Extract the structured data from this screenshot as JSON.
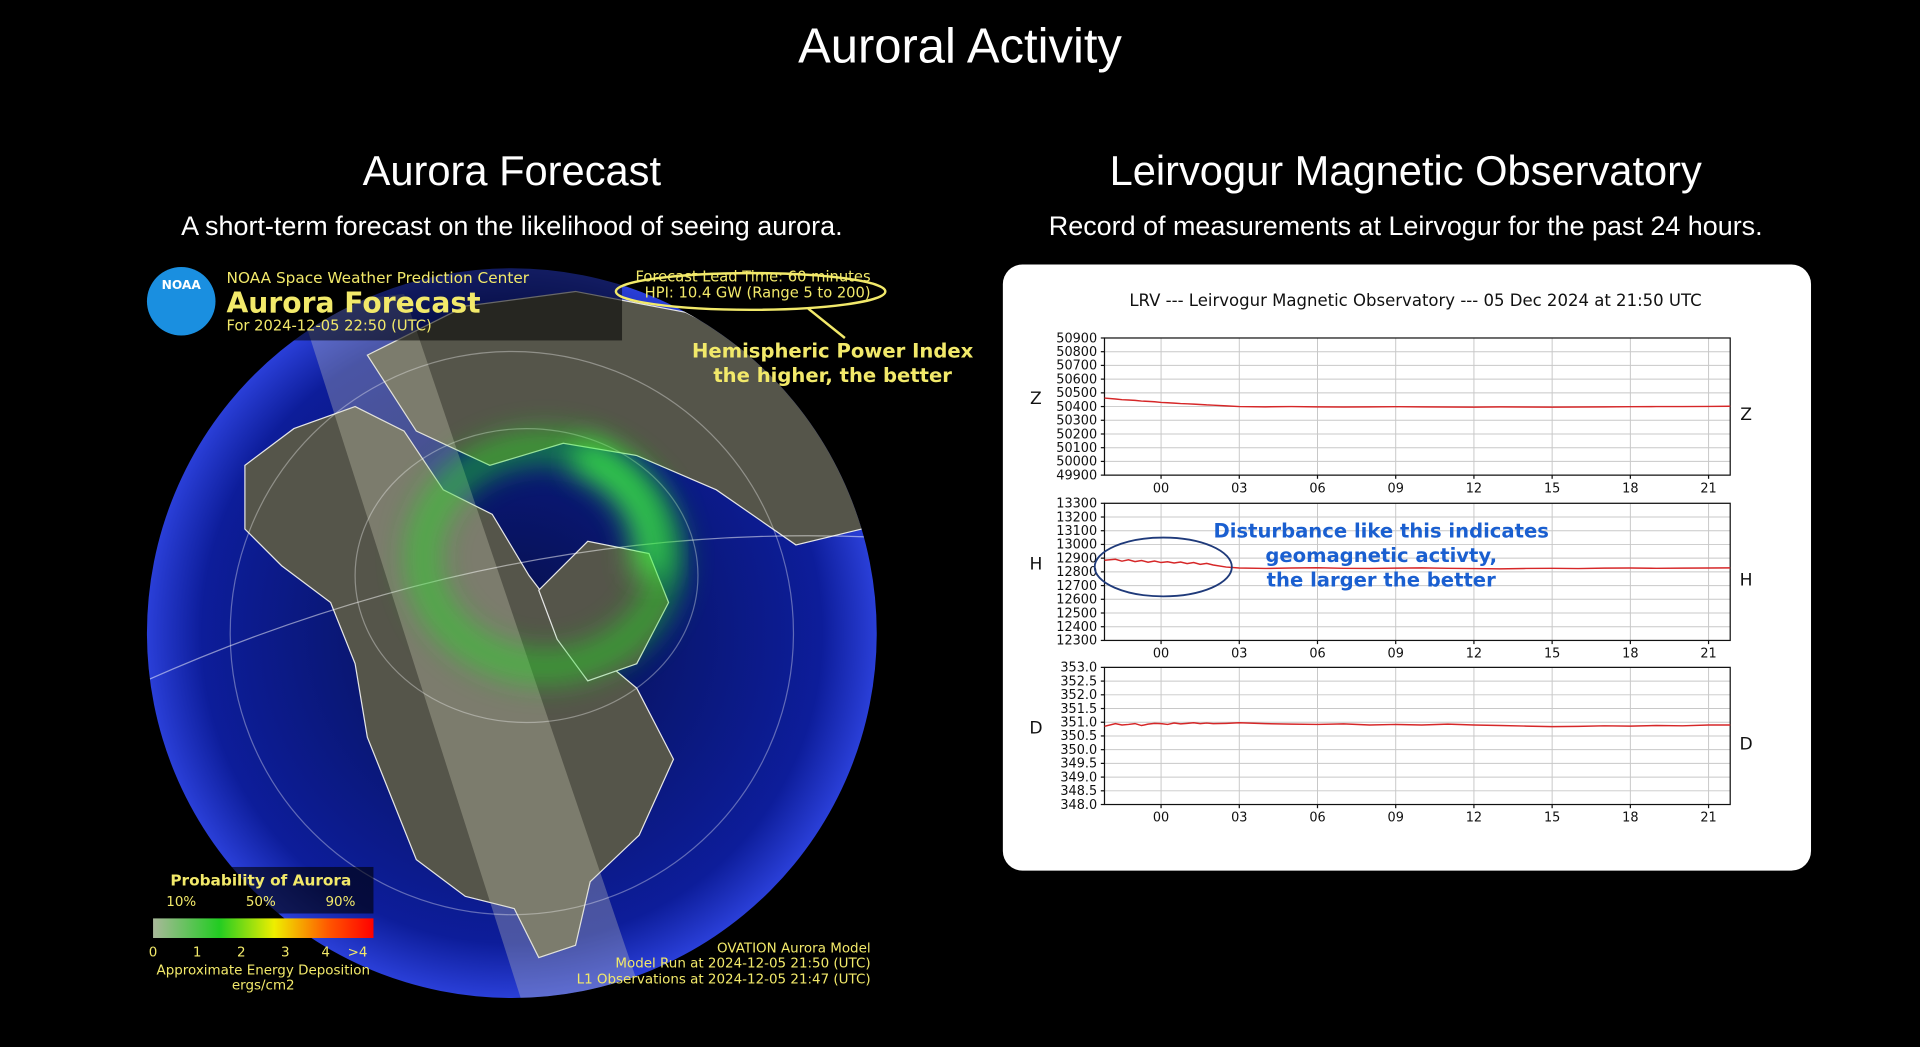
{
  "title": "Auroral Activity",
  "forecast": {
    "heading": "Aurora Forecast",
    "description": "A short-term forecast on the likelihood of seeing aurora.",
    "map": {
      "logo": "NOAA",
      "org": "NOAA Space Weather Prediction Center",
      "title": "Aurora Forecast",
      "valid_for": "For 2024-12-05 22:50 (UTC)",
      "lead_time": "Forecast Lead Time:  60 minutes",
      "hpi": "HPI:  10.4 GW (Range 5 to 200)",
      "hpi_note": [
        "Hemispheric Power Index",
        "the higher, the better"
      ],
      "legend_title": "Probability of Aurora",
      "legend_percents": [
        "10%",
        "50%",
        "90%"
      ],
      "legend_scale": [
        "0",
        "1",
        "2",
        "3",
        "4",
        ">4"
      ],
      "legend_caption": [
        "Approximate Energy Deposition",
        "ergs/cm2"
      ],
      "footer": [
        "OVATION Aurora Model",
        "Model Run at 2024-12-05 21:50 (UTC)",
        "L1 Observations at 2024-12-05 21:47 (UTC)"
      ]
    }
  },
  "observatory": {
    "heading": "Leirvogur Magnetic Observatory",
    "description": "Record of measurements at Leirvogur for the past 24 hours."
  },
  "chart_data": [
    {
      "type": "line",
      "title": "LRV --- Leirvogur Magnetic Observatory --- 05 Dec 2024 at 21:50 UTC",
      "y_label": "Z",
      "grid": true,
      "x": [
        -2.17,
        -1.75,
        -1.5,
        -1.25,
        -1,
        -0.75,
        -0.5,
        -0.25,
        0,
        0.25,
        0.5,
        0.75,
        1,
        1.25,
        1.5,
        1.75,
        2,
        2.5,
        3,
        4,
        5,
        6,
        7,
        8,
        9,
        10,
        11,
        12,
        13,
        14,
        15,
        16,
        17,
        18,
        19,
        20,
        21,
        21.83
      ],
      "values": [
        50462,
        50455,
        50450,
        50448,
        50445,
        50440,
        50438,
        50435,
        50430,
        50428,
        50425,
        50422,
        50420,
        50418,
        50415,
        50412,
        50410,
        50405,
        50400,
        50398,
        50400,
        50398,
        50397,
        50398,
        50399,
        50398,
        50397,
        50396,
        50398,
        50397,
        50396,
        50397,
        50398,
        50399,
        50400,
        50400,
        50401,
        50402
      ],
      "color": "#d62728",
      "xlim": [
        -2.17,
        21.83
      ],
      "xticks": [
        {
          "value": 0,
          "label": "00"
        },
        {
          "value": 3,
          "label": "03"
        },
        {
          "value": 6,
          "label": "06"
        },
        {
          "value": 9,
          "label": "09"
        },
        12,
        15,
        18,
        21
      ],
      "ylim": [
        49900,
        50900
      ],
      "yticks": [
        50900,
        50800,
        50700,
        50600,
        50500,
        50400,
        50300,
        50200,
        50100,
        50000,
        49900
      ]
    },
    {
      "type": "line",
      "y_label": "H",
      "grid": true,
      "x": [
        -2.17,
        -1.75,
        -1.5,
        -1.25,
        -1,
        -0.75,
        -0.5,
        -0.25,
        0,
        0.25,
        0.5,
        0.75,
        1,
        1.25,
        1.5,
        1.75,
        2,
        2.5,
        3,
        4,
        5,
        6,
        7,
        8,
        9,
        10,
        11,
        12,
        13,
        14,
        15,
        16,
        17,
        18,
        19,
        20,
        21,
        21.83
      ],
      "values": [
        12885,
        12892,
        12878,
        12888,
        12875,
        12883,
        12870,
        12879,
        12868,
        12874,
        12865,
        12872,
        12860,
        12868,
        12855,
        12862,
        12850,
        12835,
        12828,
        12825,
        12828,
        12830,
        12826,
        12825,
        12827,
        12829,
        12826,
        12824,
        12822,
        12825,
        12826,
        12824,
        12827,
        12828,
        12826,
        12827,
        12828,
        12829
      ],
      "color": "#d62728",
      "xlim": [
        -2.17,
        21.83
      ],
      "xticks": [
        {
          "value": 0,
          "label": "00"
        },
        {
          "value": 3,
          "label": "03"
        },
        {
          "value": 6,
          "label": "06"
        },
        {
          "value": 9,
          "label": "09"
        },
        12,
        15,
        18,
        21
      ],
      "ylim": [
        12300,
        13300
      ],
      "yticks": [
        13300,
        13200,
        13100,
        13000,
        12900,
        12800,
        12700,
        12600,
        12500,
        12400,
        12300
      ],
      "annotation": [
        "Disturbance like this indicates",
        "geomagnetic activty,",
        "the larger the better"
      ]
    },
    {
      "type": "line",
      "y_label": "D",
      "grid": true,
      "x": [
        -2.17,
        -1.75,
        -1.5,
        -1.25,
        -1,
        -0.75,
        -0.5,
        -0.25,
        0,
        0.25,
        0.5,
        0.75,
        1,
        1.25,
        1.5,
        1.75,
        2,
        2.5,
        3,
        4,
        5,
        6,
        7,
        8,
        9,
        10,
        11,
        12,
        13,
        14,
        15,
        16,
        17,
        18,
        19,
        20,
        21,
        21.83
      ],
      "values": [
        350.85,
        350.95,
        350.9,
        350.92,
        350.95,
        350.88,
        350.93,
        350.96,
        350.95,
        350.92,
        350.97,
        350.94,
        350.96,
        350.98,
        350.95,
        350.97,
        350.95,
        350.96,
        350.98,
        350.95,
        350.93,
        350.92,
        350.94,
        350.9,
        350.92,
        350.9,
        350.93,
        350.9,
        350.88,
        350.86,
        350.84,
        350.85,
        350.87,
        350.86,
        350.88,
        350.87,
        350.9,
        350.9
      ],
      "color": "#d62728",
      "xlim": [
        -2.17,
        21.83
      ],
      "xticks": [
        {
          "value": 0,
          "label": "00"
        },
        {
          "value": 3,
          "label": "03"
        },
        {
          "value": 6,
          "label": "06"
        },
        {
          "value": 9,
          "label": "09"
        },
        12,
        15,
        18,
        21
      ],
      "ylim": [
        348,
        353
      ],
      "yticks": [
        {
          "value": 353,
          "label": "353.0"
        },
        352.5,
        {
          "value": 352,
          "label": "352.0"
        },
        351.5,
        {
          "value": 351,
          "label": "351.0"
        },
        350.5,
        {
          "value": 350,
          "label": "350.0"
        },
        349.5,
        {
          "value": 349,
          "label": "349.0"
        },
        348.5,
        {
          "value": 348,
          "label": "348.0"
        }
      ]
    }
  ]
}
